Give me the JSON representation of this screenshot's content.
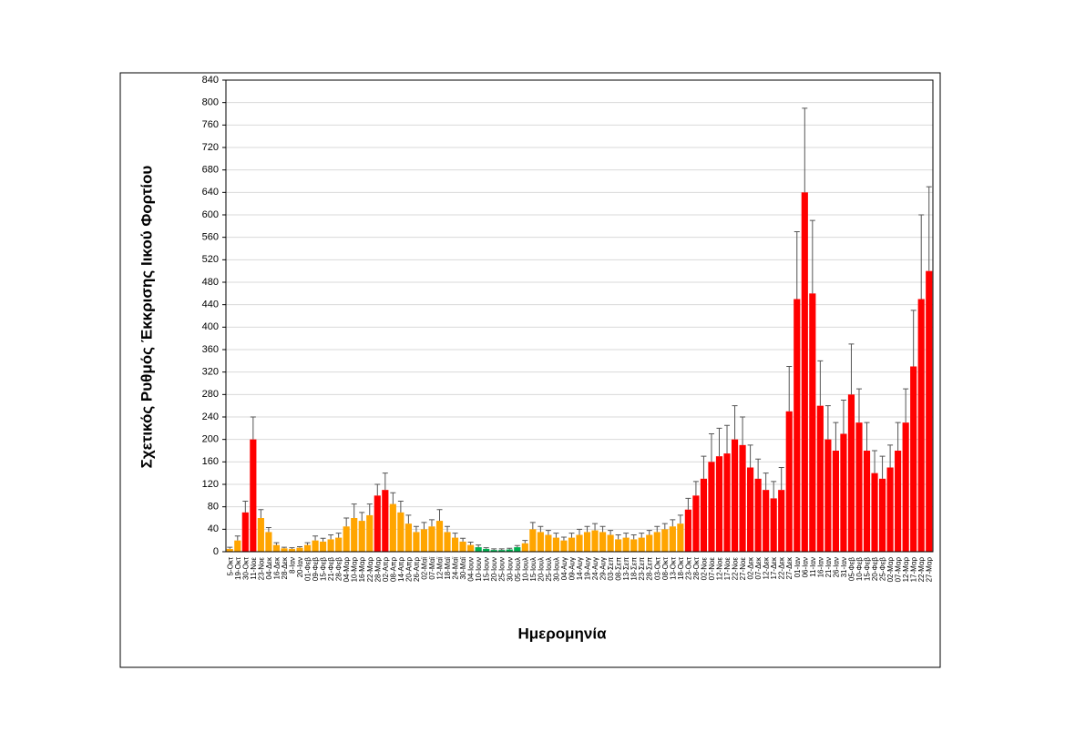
{
  "chart_data": {
    "type": "bar",
    "y_label": "Σχετικός Ρυθμός Έκκρισης Ιικού Φορτίου",
    "x_label": "Ημερομηνία",
    "categories": [
      "5-Οκτ",
      "19-Οκτ",
      "30-Οκτ",
      "11-Νοε",
      "23-Νοε",
      "04-Δεκ",
      "16-Δεκ",
      "28-Δεκ",
      "8-Ιαν",
      "20-Ιαν",
      "01-Φεβ",
      "09-Φεβ",
      "15-Φεβ",
      "21-Φεβ",
      "28-Φεβ",
      "04-Μαρ",
      "10-Μαρ",
      "16-Μαρ",
      "22-Μαρ",
      "28-Μαρ",
      "02-Απρ",
      "08-Απρ",
      "14-Απρ",
      "20-Απρ",
      "26-Απρ",
      "02-Μαϊ",
      "07-Μαϊ",
      "12-Μαϊ",
      "18-Μαϊ",
      "24-Μαϊ",
      "30-Μαϊ",
      "04-Ιουν",
      "10-Ιουν",
      "15-Ιουν",
      "20-Ιουν",
      "25-Ιουν",
      "30-Ιουν",
      "05-Ιουλ",
      "10-Ιουλ",
      "15-Ιουλ",
      "20-Ιουλ",
      "25-Ιουλ",
      "30-Ιουλ",
      "04-Αυγ",
      "09-Αυγ",
      "14-Αυγ",
      "19-Αυγ",
      "24-Αυγ",
      "29-Αυγ",
      "03-Σεπ",
      "08-Σεπ",
      "13-Σεπ",
      "18-Σεπ",
      "23-Σεπ",
      "28-Σεπ",
      "03-Οκτ",
      "08-Οκτ",
      "13-Οκτ",
      "18-Οκτ",
      "23-Οκτ",
      "28-Οκτ",
      "02-Νοε",
      "07-Νοε",
      "12-Νοε",
      "17-Νοε",
      "22-Νοε",
      "27-Νοε",
      "02-Δεκ",
      "07-Δεκ",
      "12-Δεκ",
      "17-Δεκ",
      "22-Δεκ",
      "27-Δεκ",
      "01-Ιαν",
      "06-Ιαν",
      "11-Ιαν",
      "16-Ιαν",
      "21-Ιαν",
      "26-Ιαν",
      "31-Ιαν",
      "05-Φεβ",
      "10-Φεβ",
      "15-Φεβ",
      "20-Φεβ",
      "25-Φεβ",
      "02-Μαρ",
      "07-Μαρ",
      "12-Μαρ",
      "17-Μαρ",
      "22-Μαρ",
      "27-Μαρ"
    ],
    "values": [
      5,
      20,
      70,
      200,
      60,
      35,
      12,
      6,
      5,
      7,
      12,
      20,
      18,
      22,
      25,
      45,
      60,
      55,
      65,
      100,
      110,
      85,
      70,
      50,
      35,
      40,
      45,
      55,
      35,
      25,
      18,
      12,
      8,
      5,
      3,
      3,
      4,
      8,
      15,
      40,
      35,
      30,
      25,
      20,
      25,
      30,
      35,
      38,
      35,
      30,
      22,
      25,
      22,
      25,
      30,
      35,
      40,
      45,
      50,
      75,
      100,
      130,
      160,
      170,
      175,
      200,
      190,
      150,
      130,
      110,
      95,
      110,
      250,
      450,
      640,
      460,
      260,
      200,
      180,
      210,
      280,
      230,
      180,
      140,
      130,
      150,
      180,
      230,
      330,
      450,
      500
    ],
    "errors": [
      3,
      8,
      20,
      40,
      15,
      8,
      4,
      2,
      2,
      2,
      4,
      8,
      6,
      8,
      8,
      15,
      25,
      15,
      20,
      20,
      30,
      20,
      20,
      15,
      10,
      12,
      12,
      20,
      10,
      8,
      6,
      5,
      4,
      2,
      2,
      2,
      2,
      3,
      5,
      12,
      10,
      8,
      8,
      6,
      8,
      10,
      10,
      12,
      10,
      8,
      8,
      8,
      8,
      8,
      8,
      10,
      10,
      12,
      15,
      20,
      25,
      40,
      50,
      50,
      50,
      60,
      50,
      40,
      35,
      30,
      30,
      40,
      80,
      120,
      150,
      130,
      80,
      60,
      50,
      60,
      90,
      60,
      50,
      40,
      40,
      40,
      50,
      60,
      100,
      150,
      150
    ],
    "colors": [
      "#FFA500",
      "#FFA500",
      "#FF0000",
      "#FF0000",
      "#FFA500",
      "#FFA500",
      "#FFA500",
      "#FFA500",
      "#FFA500",
      "#FFA500",
      "#FFA500",
      "#FFA500",
      "#FFA500",
      "#FFA500",
      "#FFA500",
      "#FFA500",
      "#FFA500",
      "#FFA500",
      "#FFA500",
      "#FF0000",
      "#FF0000",
      "#FFA500",
      "#FFA500",
      "#FFA500",
      "#FFA500",
      "#FFA500",
      "#FFA500",
      "#FFA500",
      "#FFA500",
      "#FFA500",
      "#FFA500",
      "#FFA500",
      "#00B050",
      "#00B050",
      "#00B050",
      "#00B050",
      "#00B050",
      "#00B050",
      "#FFA500",
      "#FFA500",
      "#FFA500",
      "#FFA500",
      "#FFA500",
      "#FFA500",
      "#FFA500",
      "#FFA500",
      "#FFA500",
      "#FFA500",
      "#FFA500",
      "#FFA500",
      "#FFA500",
      "#FFA500",
      "#FFA500",
      "#FFA500",
      "#FFA500",
      "#FFA500",
      "#FFA500",
      "#FFA500",
      "#FFA500",
      "#FF0000",
      "#FF0000",
      "#FF0000",
      "#FF0000",
      "#FF0000",
      "#FF0000",
      "#FF0000",
      "#FF0000",
      "#FF0000",
      "#FF0000",
      "#FF0000",
      "#FF0000",
      "#FF0000",
      "#FF0000",
      "#FF0000",
      "#FF0000",
      "#FF0000",
      "#FF0000",
      "#FF0000",
      "#FF0000",
      "#FF0000",
      "#FF0000",
      "#FF0000",
      "#FF0000",
      "#FF0000",
      "#FF0000",
      "#FF0000",
      "#FF0000",
      "#FF0000",
      "#FF0000",
      "#FF0000",
      "#FF0000"
    ],
    "ylim": [
      0,
      840
    ],
    "yticks": [
      0,
      40,
      80,
      120,
      160,
      200,
      240,
      280,
      320,
      360,
      400,
      440,
      480,
      520,
      560,
      600,
      640,
      680,
      720,
      760,
      800,
      840
    ],
    "grid": true
  }
}
